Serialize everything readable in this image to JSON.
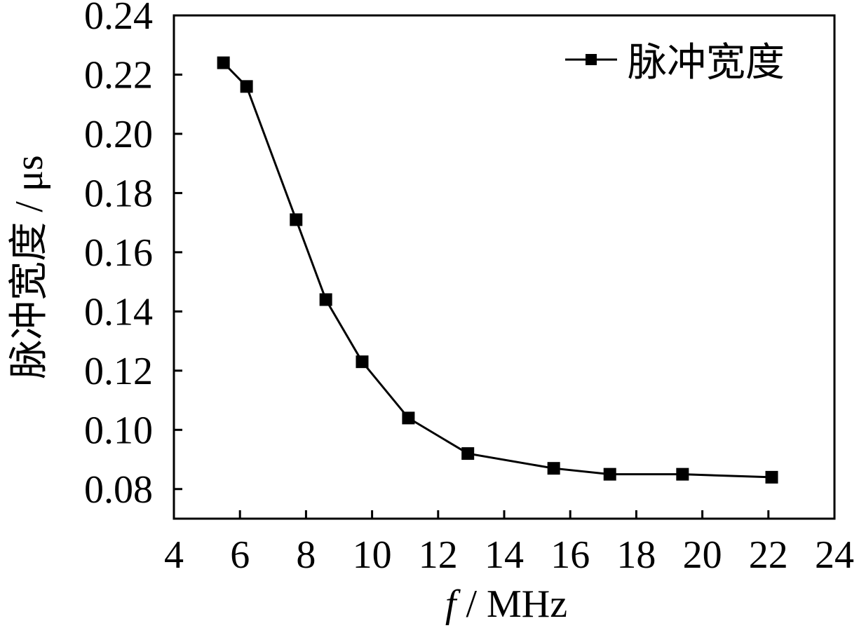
{
  "chart_data": {
    "type": "line",
    "title": "",
    "xlabel_italic": "f",
    "xlabel_rest": " / MHz",
    "ylabel": "脉冲宽度 / μs",
    "xlim": [
      4,
      24
    ],
    "ylim": [
      0.07,
      0.24
    ],
    "x_ticks": [
      "4",
      "6",
      "8",
      "10",
      "12",
      "14",
      "16",
      "18",
      "20",
      "22",
      "24"
    ],
    "x_tick_values": [
      4,
      6,
      8,
      10,
      12,
      14,
      16,
      18,
      20,
      22,
      24
    ],
    "y_ticks": [
      "0.08",
      "0.10",
      "0.12",
      "0.14",
      "0.16",
      "0.18",
      "0.20",
      "0.22",
      "0.24"
    ],
    "y_tick_values": [
      0.08,
      0.1,
      0.12,
      0.14,
      0.16,
      0.18,
      0.2,
      0.22,
      0.24
    ],
    "grid": false,
    "legend_position": "top-right",
    "series": [
      {
        "name": "脉冲宽度",
        "color": "#000000",
        "marker": "square",
        "x": [
          5.5,
          6.2,
          7.7,
          8.6,
          9.7,
          11.1,
          12.9,
          15.5,
          17.2,
          19.4,
          22.1
        ],
        "y": [
          0.224,
          0.216,
          0.171,
          0.144,
          0.123,
          0.104,
          0.092,
          0.087,
          0.085,
          0.085,
          0.084
        ]
      }
    ]
  }
}
